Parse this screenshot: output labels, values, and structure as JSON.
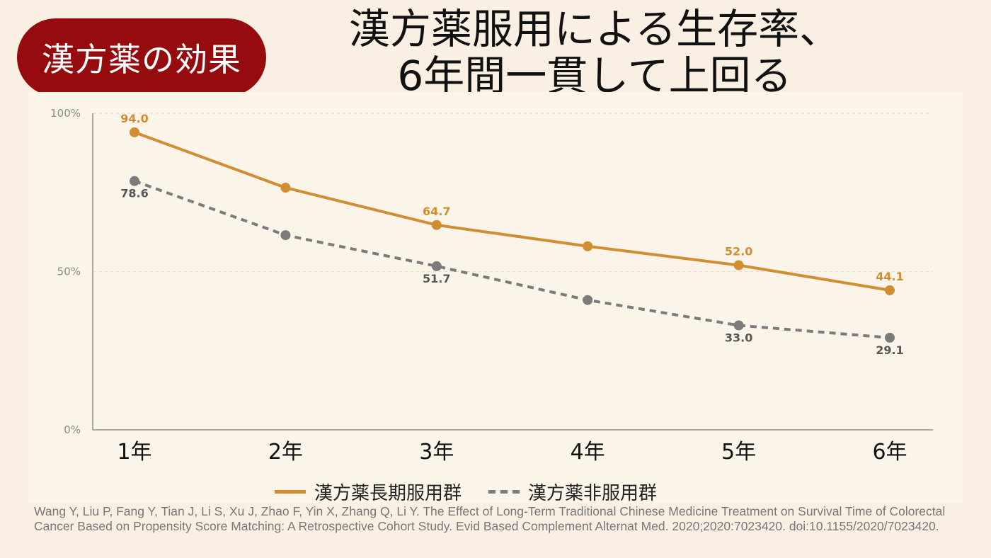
{
  "badge": {
    "label": "漢方薬の効果"
  },
  "title": {
    "line1": "漢方薬服用による生存率、",
    "line2": "6年間一貫して上回る"
  },
  "chart_data": {
    "type": "line",
    "categories": [
      "1年",
      "2年",
      "3年",
      "4年",
      "5年",
      "6年"
    ],
    "y_ticks": [
      "100%",
      "50%",
      "0%"
    ],
    "ylim": [
      0,
      100
    ],
    "grid": true,
    "legend_position": "bottom-center",
    "series": [
      {
        "name": "漢方薬長期服用群",
        "values": [
          94.0,
          76.5,
          64.7,
          58.0,
          52.0,
          44.1
        ],
        "labels": [
          "94.0",
          "",
          "64.7",
          "",
          "52.0",
          "44.1"
        ],
        "label_position": "above",
        "style": "solid",
        "color": "#d08d32"
      },
      {
        "name": "漢方薬非服用群",
        "values": [
          78.6,
          61.5,
          51.7,
          41.0,
          33.0,
          29.1
        ],
        "labels": [
          "78.6",
          "",
          "51.7",
          "",
          "33.0",
          "29.1"
        ],
        "label_position": "below",
        "style": "dashed",
        "color": "#7b7b7b"
      }
    ]
  },
  "citation": "Wang Y, Liu P, Fang Y, Tian J, Li S, Xu J, Zhao F, Yin X, Zhang Q, Li Y. The Effect of Long-Term Traditional Chinese Medicine Treatment on Survival Time of Colorectal Cancer Based on Propensity Score Matching: A Retrospective Cohort Study. Evid Based Complement Alternat Med. 2020;2020:7023420. doi:10.1155/2020/7023420."
}
